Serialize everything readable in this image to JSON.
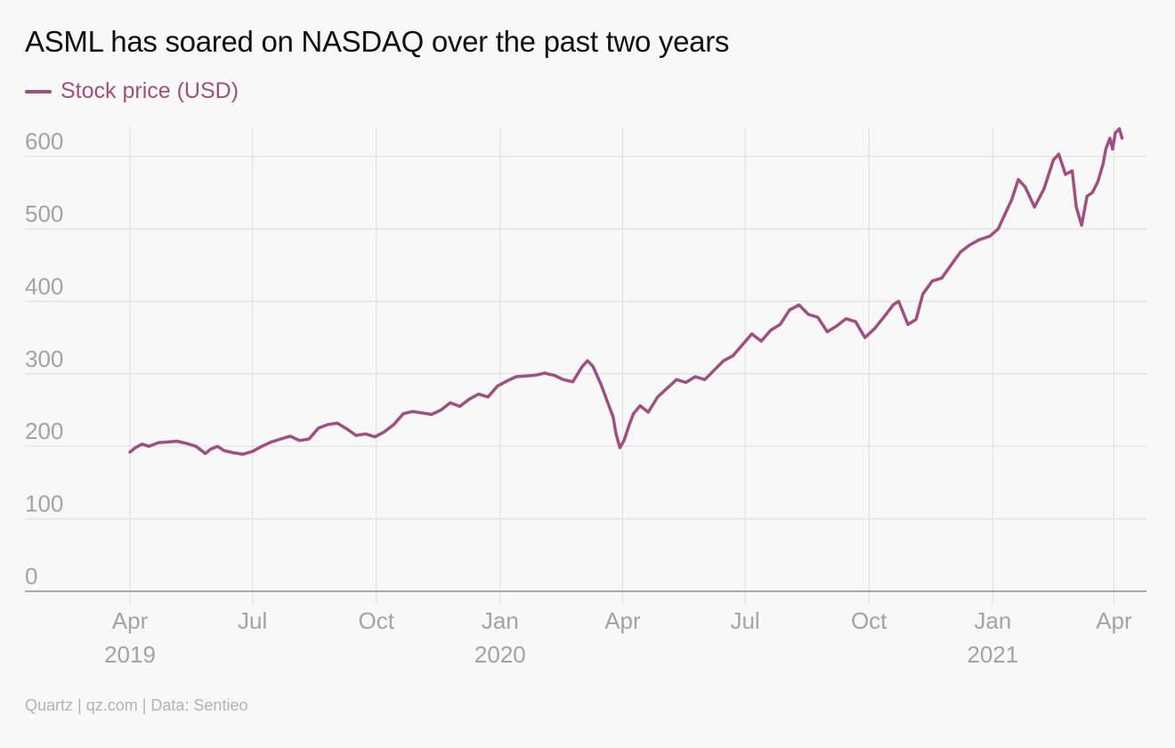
{
  "title": "ASML has soared on NASDAQ over the past two years",
  "source": "Quartz | qz.com | Data: Sentieo",
  "colors": {
    "series": "#a0507f",
    "grid": "#e2e2e2",
    "axis": "#8f8f8f",
    "tick_text": "#a3a3a3",
    "background": "#f8f8f8"
  },
  "chart_data": {
    "type": "line",
    "legend_position": "top-left",
    "grid": true,
    "ylim": [
      0,
      640
    ],
    "yticks": [
      0,
      100,
      200,
      300,
      400,
      500,
      600
    ],
    "xlim": [
      "2019-04-01",
      "2021-04-08"
    ],
    "xticks": [
      {
        "date": "2019-04-01",
        "label": "Apr",
        "year": "2019"
      },
      {
        "date": "2019-07-01",
        "label": "Jul",
        "year": ""
      },
      {
        "date": "2019-10-01",
        "label": "Oct",
        "year": ""
      },
      {
        "date": "2020-01-01",
        "label": "Jan",
        "year": "2020"
      },
      {
        "date": "2020-04-01",
        "label": "Apr",
        "year": ""
      },
      {
        "date": "2020-07-01",
        "label": "Jul",
        "year": ""
      },
      {
        "date": "2020-10-01",
        "label": "Oct",
        "year": ""
      },
      {
        "date": "2021-01-01",
        "label": "Jan",
        "year": "2021"
      },
      {
        "date": "2021-04-01",
        "label": "Apr",
        "year": ""
      }
    ],
    "series": [
      {
        "name": "Stock price (USD)",
        "points": [
          [
            "2019-04-01",
            192
          ],
          [
            "2019-04-05",
            198
          ],
          [
            "2019-04-10",
            203
          ],
          [
            "2019-04-15",
            200
          ],
          [
            "2019-04-22",
            205
          ],
          [
            "2019-04-30",
            206
          ],
          [
            "2019-05-06",
            207
          ],
          [
            "2019-05-13",
            204
          ],
          [
            "2019-05-20",
            200
          ],
          [
            "2019-05-27",
            190
          ],
          [
            "2019-05-31",
            196
          ],
          [
            "2019-06-05",
            200
          ],
          [
            "2019-06-10",
            194
          ],
          [
            "2019-06-17",
            191
          ],
          [
            "2019-06-24",
            189
          ],
          [
            "2019-07-01",
            193
          ],
          [
            "2019-07-08",
            200
          ],
          [
            "2019-07-15",
            206
          ],
          [
            "2019-07-22",
            210
          ],
          [
            "2019-07-29",
            214
          ],
          [
            "2019-08-05",
            208
          ],
          [
            "2019-08-12",
            210
          ],
          [
            "2019-08-19",
            225
          ],
          [
            "2019-08-26",
            230
          ],
          [
            "2019-09-02",
            232
          ],
          [
            "2019-09-09",
            224
          ],
          [
            "2019-09-16",
            215
          ],
          [
            "2019-09-23",
            217
          ],
          [
            "2019-09-30",
            213
          ],
          [
            "2019-10-07",
            220
          ],
          [
            "2019-10-14",
            230
          ],
          [
            "2019-10-21",
            245
          ],
          [
            "2019-10-28",
            248
          ],
          [
            "2019-11-04",
            246
          ],
          [
            "2019-11-11",
            244
          ],
          [
            "2019-11-18",
            250
          ],
          [
            "2019-11-25",
            260
          ],
          [
            "2019-12-02",
            255
          ],
          [
            "2019-12-09",
            265
          ],
          [
            "2019-12-16",
            272
          ],
          [
            "2019-12-23",
            268
          ],
          [
            "2019-12-30",
            283
          ],
          [
            "2020-01-06",
            290
          ],
          [
            "2020-01-13",
            296
          ],
          [
            "2020-01-20",
            297
          ],
          [
            "2020-01-27",
            298
          ],
          [
            "2020-02-03",
            301
          ],
          [
            "2020-02-10",
            298
          ],
          [
            "2020-02-17",
            292
          ],
          [
            "2020-02-24",
            289
          ],
          [
            "2020-03-02",
            310
          ],
          [
            "2020-03-06",
            318
          ],
          [
            "2020-03-10",
            310
          ],
          [
            "2020-03-16",
            285
          ],
          [
            "2020-03-20",
            265
          ],
          [
            "2020-03-23",
            250
          ],
          [
            "2020-03-25",
            240
          ],
          [
            "2020-03-27",
            218
          ],
          [
            "2020-03-30",
            198
          ],
          [
            "2020-04-02",
            208
          ],
          [
            "2020-04-06",
            230
          ],
          [
            "2020-04-09",
            245
          ],
          [
            "2020-04-14",
            256
          ],
          [
            "2020-04-20",
            247
          ],
          [
            "2020-04-27",
            268
          ],
          [
            "2020-05-04",
            280
          ],
          [
            "2020-05-11",
            292
          ],
          [
            "2020-05-18",
            288
          ],
          [
            "2020-05-25",
            296
          ],
          [
            "2020-06-01",
            292
          ],
          [
            "2020-06-08",
            305
          ],
          [
            "2020-06-15",
            318
          ],
          [
            "2020-06-22",
            325
          ],
          [
            "2020-06-29",
            340
          ],
          [
            "2020-07-06",
            355
          ],
          [
            "2020-07-13",
            345
          ],
          [
            "2020-07-20",
            360
          ],
          [
            "2020-07-27",
            368
          ],
          [
            "2020-08-03",
            388
          ],
          [
            "2020-08-10",
            395
          ],
          [
            "2020-08-17",
            382
          ],
          [
            "2020-08-24",
            378
          ],
          [
            "2020-08-31",
            358
          ],
          [
            "2020-09-07",
            366
          ],
          [
            "2020-09-14",
            376
          ],
          [
            "2020-09-21",
            372
          ],
          [
            "2020-09-28",
            350
          ],
          [
            "2020-10-05",
            362
          ],
          [
            "2020-10-12",
            378
          ],
          [
            "2020-10-19",
            395
          ],
          [
            "2020-10-23",
            400
          ],
          [
            "2020-10-30",
            368
          ],
          [
            "2020-11-05",
            375
          ],
          [
            "2020-11-10",
            410
          ],
          [
            "2020-11-17",
            428
          ],
          [
            "2020-11-24",
            432
          ],
          [
            "2020-12-01",
            450
          ],
          [
            "2020-12-08",
            468
          ],
          [
            "2020-12-15",
            478
          ],
          [
            "2020-12-22",
            485
          ],
          [
            "2020-12-30",
            490
          ],
          [
            "2021-01-05",
            500
          ],
          [
            "2021-01-10",
            520
          ],
          [
            "2021-01-15",
            540
          ],
          [
            "2021-01-20",
            568
          ],
          [
            "2021-01-25",
            558
          ],
          [
            "2021-02-01",
            530
          ],
          [
            "2021-02-08",
            555
          ],
          [
            "2021-02-15",
            595
          ],
          [
            "2021-02-19",
            603
          ],
          [
            "2021-02-24",
            575
          ],
          [
            "2021-03-01",
            580
          ],
          [
            "2021-03-04",
            530
          ],
          [
            "2021-03-08",
            505
          ],
          [
            "2021-03-12",
            545
          ],
          [
            "2021-03-16",
            550
          ],
          [
            "2021-03-20",
            565
          ],
          [
            "2021-03-24",
            590
          ],
          [
            "2021-03-26",
            610
          ],
          [
            "2021-03-29",
            625
          ],
          [
            "2021-03-31",
            610
          ],
          [
            "2021-04-02",
            632
          ],
          [
            "2021-04-05",
            638
          ],
          [
            "2021-04-07",
            625
          ]
        ]
      }
    ]
  }
}
